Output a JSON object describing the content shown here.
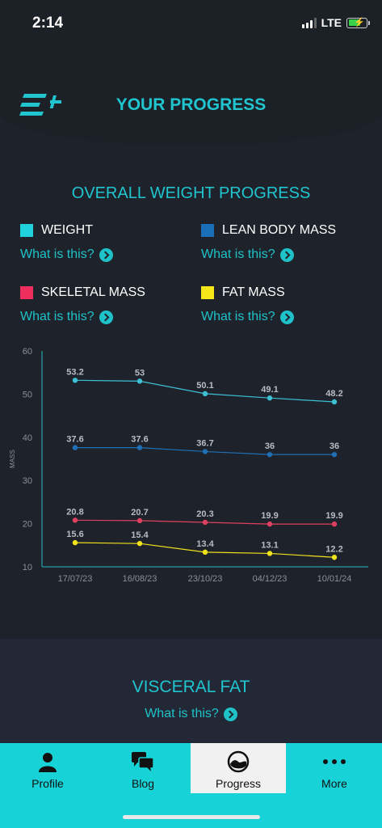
{
  "status_bar": {
    "time": "2:14",
    "network": "LTE",
    "battery_color": "#3ad14a"
  },
  "header": {
    "title": "YOUR PROGRESS",
    "logo_icon": "logo-icon"
  },
  "overall": {
    "title": "OVERALL WEIGHT PROGRESS",
    "legend": [
      {
        "label": "WEIGHT",
        "color": "#20d2dc",
        "help": "What is this?"
      },
      {
        "label": "LEAN BODY MASS",
        "color": "#1a6fb8",
        "help": "What is this?"
      },
      {
        "label": "SKELETAL MASS",
        "color": "#ee2f5e",
        "help": "What is this?"
      },
      {
        "label": "FAT MASS",
        "color": "#f6e71a",
        "help": "What is this?"
      }
    ]
  },
  "chart_data": {
    "type": "line",
    "categories": [
      "17/07/23",
      "16/08/23",
      "23/10/23",
      "04/12/23",
      "10/01/24"
    ],
    "ylabel": "MASS",
    "ylim": [
      10,
      60
    ],
    "yticks": [
      10,
      20,
      30,
      40,
      50,
      60
    ],
    "grid": false,
    "series": [
      {
        "name": "WEIGHT",
        "color": "#3dbfd4",
        "values": [
          53.2,
          53,
          50.1,
          49.1,
          48.2
        ]
      },
      {
        "name": "LEAN BODY MASS",
        "color": "#1f6fb5",
        "values": [
          37.6,
          37.6,
          36.7,
          36,
          36
        ]
      },
      {
        "name": "SKELETAL MASS",
        "color": "#e0405f",
        "values": [
          20.8,
          20.7,
          20.3,
          19.9,
          19.9
        ]
      },
      {
        "name": "FAT MASS",
        "color": "#f2e21b",
        "values": [
          15.6,
          15.4,
          13.4,
          13.1,
          12.2
        ]
      }
    ]
  },
  "visceral": {
    "title": "VISCERAL FAT",
    "help": "What is this?"
  },
  "tabs": [
    {
      "label": "Profile",
      "icon": "person-icon",
      "active": false
    },
    {
      "label": "Blog",
      "icon": "chat-bubbles-icon",
      "active": false
    },
    {
      "label": "Progress",
      "icon": "progress-gauge-icon",
      "active": true
    },
    {
      "label": "More",
      "icon": "more-dots-icon",
      "active": false
    }
  ]
}
